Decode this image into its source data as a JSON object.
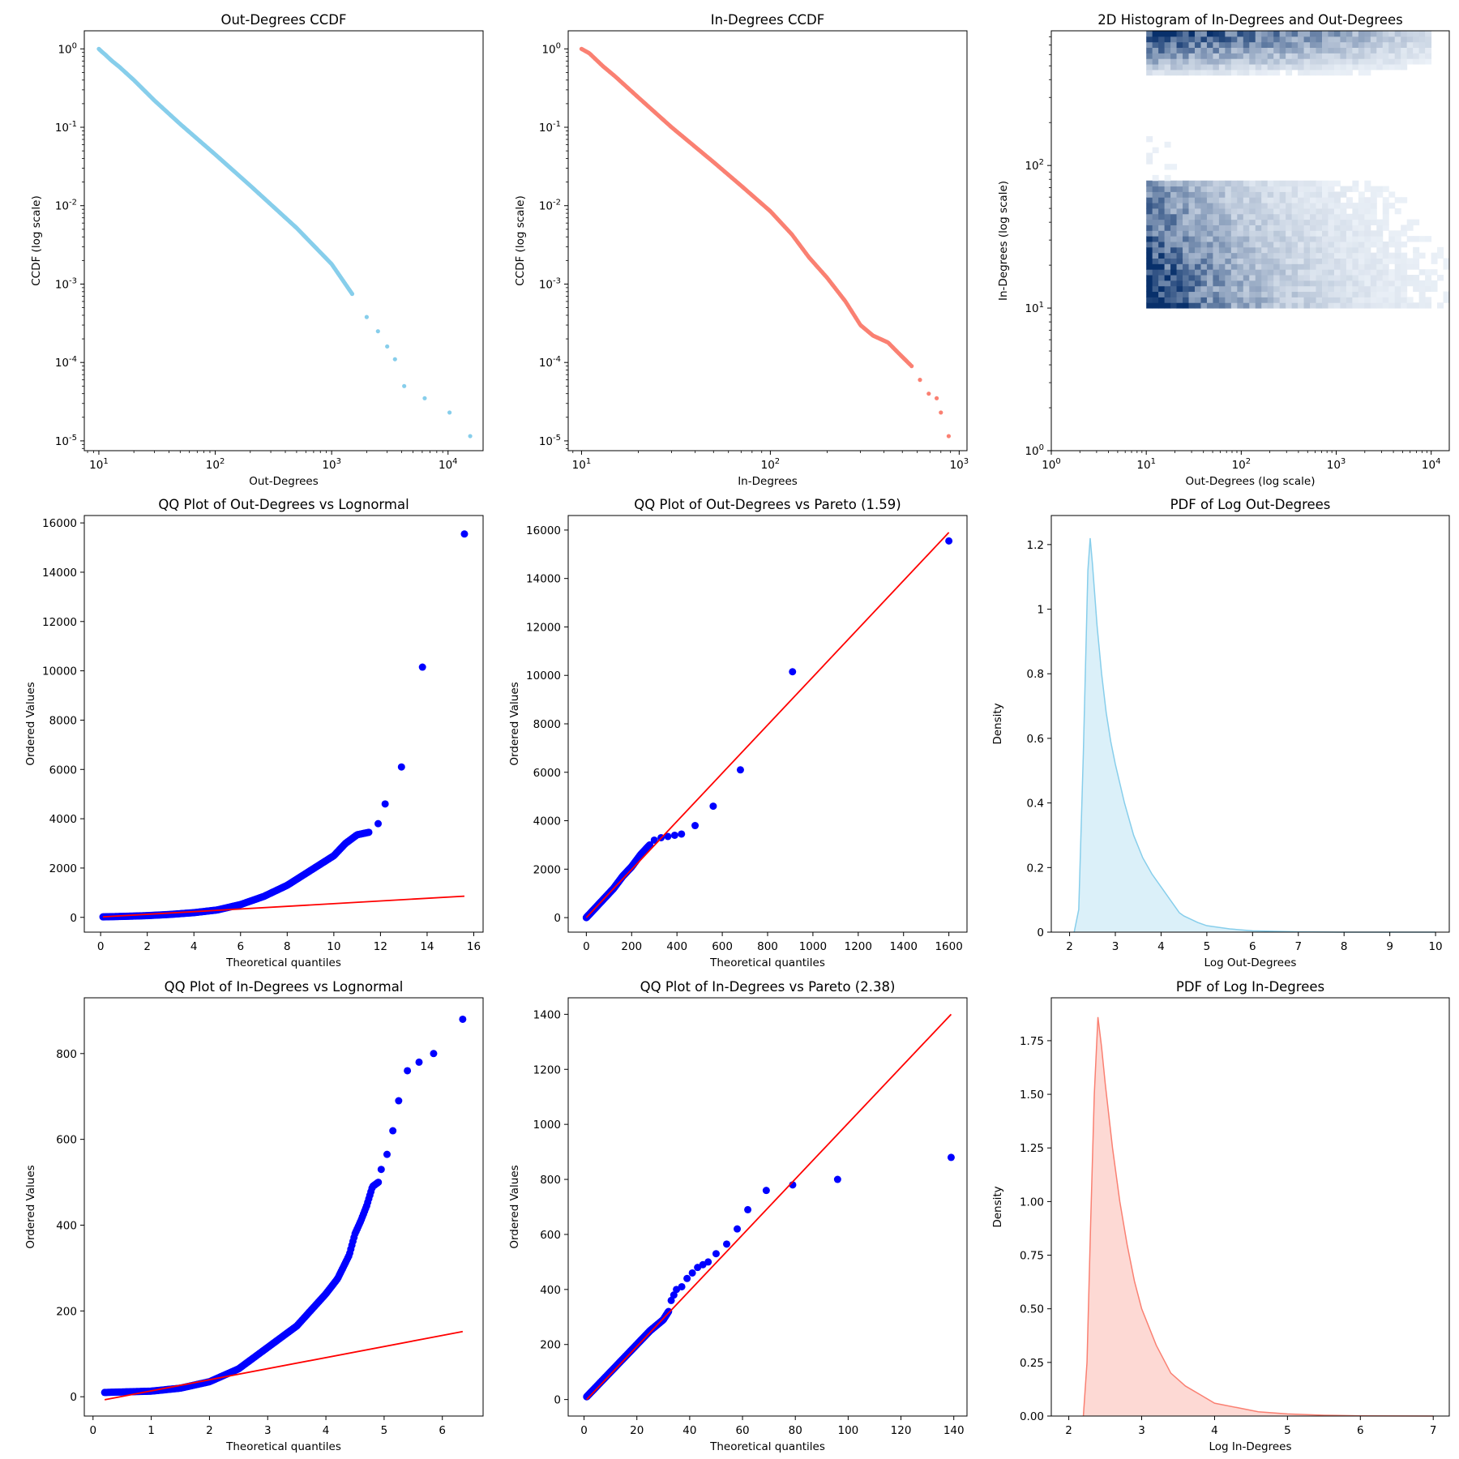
{
  "chart_data": [
    {
      "id": "out_ccdf",
      "type": "scatter",
      "title": "Out-Degrees CCDF",
      "xlabel": "Out-Degrees",
      "ylabel": "CCDF (log scale)",
      "xscale": "log",
      "yscale": "log",
      "xlim": [
        7.5,
        20000
      ],
      "ylim": [
        7.5e-06,
        1.7
      ],
      "xticks": [
        10,
        100,
        1000,
        10000
      ],
      "yticks": [
        1e-05,
        0.0001,
        0.001,
        0.01,
        0.1,
        1
      ],
      "color": "#87ceeb",
      "series": [
        {
          "x": [
            10,
            10.6,
            11.3,
            12,
            13,
            15,
            20,
            30,
            50,
            100,
            200,
            500,
            1000,
            1500,
            2000,
            2500,
            3000,
            3500,
            4200,
            6300,
            10300,
            15500
          ],
          "y": [
            1,
            0.92,
            0.85,
            0.78,
            0.7,
            0.59,
            0.4,
            0.22,
            0.11,
            0.045,
            0.018,
            0.0052,
            0.0018,
            0.00075,
            0.00038,
            0.00025,
            0.00016,
            0.00011,
            5e-05,
            3.5e-05,
            2.3e-05,
            1.15e-05
          ]
        }
      ]
    },
    {
      "id": "in_ccdf",
      "type": "scatter",
      "title": "In-Degrees CCDF",
      "xlabel": "In-Degrees",
      "ylabel": "CCDF (log scale)",
      "xscale": "log",
      "yscale": "log",
      "xlim": [
        8.5,
        1100
      ],
      "ylim": [
        7.5e-06,
        1.7
      ],
      "xticks": [
        10,
        100,
        1000
      ],
      "yticks": [
        1e-05,
        0.0001,
        0.001,
        0.01,
        0.1,
        1
      ],
      "color": "#fa8072",
      "series": [
        {
          "x": [
            10,
            11,
            12,
            13,
            15,
            20,
            30,
            50,
            70,
            100,
            130,
            160,
            200,
            250,
            300,
            350,
            420,
            480,
            560,
            620,
            690,
            760,
            800,
            880
          ],
          "y": [
            1,
            0.88,
            0.72,
            0.6,
            0.45,
            0.24,
            0.1,
            0.036,
            0.018,
            0.0085,
            0.0043,
            0.0022,
            0.0012,
            0.0006,
            0.0003,
            0.00022,
            0.00018,
            0.00013,
            9e-05,
            6e-05,
            4e-05,
            3.5e-05,
            2.3e-05,
            1.15e-05
          ]
        }
      ]
    },
    {
      "id": "hist2d",
      "type": "heatmap",
      "title": "2D Histogram of In-Degrees and Out-Degrees",
      "xlabel": "Out-Degrees (log scale)",
      "ylabel": "In-Degrees (log scale)",
      "xscale": "log",
      "yscale": "log",
      "xlim": [
        1,
        15500
      ],
      "ylim": [
        1,
        880
      ],
      "xticks": [
        1,
        10,
        100,
        1000,
        10000
      ],
      "yticks": [
        1,
        10,
        100
      ],
      "colormap": "Blues",
      "data_extent": {
        "x": [
          10,
          15500
        ],
        "y": [
          10,
          880
        ]
      }
    },
    {
      "id": "qq_out_logn",
      "type": "scatter",
      "title": "QQ Plot of Out-Degrees vs Lognormal",
      "xlabel": "Theoretical quantiles",
      "ylabel": "Ordered Values",
      "xlim": [
        -0.7,
        16.4
      ],
      "ylim": [
        -600,
        16300
      ],
      "xticks": [
        0,
        2,
        4,
        6,
        8,
        10,
        12,
        14,
        16
      ],
      "yticks": [
        0,
        2000,
        4000,
        6000,
        8000,
        10000,
        12000,
        14000,
        16000
      ],
      "point_color": "#0000ff",
      "line_color": "#ff0000",
      "curve": [
        [
          0.1,
          20
        ],
        [
          1,
          40
        ],
        [
          2,
          70
        ],
        [
          3,
          120
        ],
        [
          4,
          190
        ],
        [
          5,
          300
        ],
        [
          6,
          520
        ],
        [
          7,
          850
        ],
        [
          8,
          1300
        ],
        [
          9,
          1900
        ],
        [
          9.5,
          2200
        ],
        [
          10,
          2500
        ],
        [
          10.5,
          3000
        ],
        [
          11,
          3350
        ],
        [
          11.5,
          3450
        ]
      ],
      "points": [
        [
          11.9,
          3800
        ],
        [
          12.2,
          4600
        ],
        [
          12.9,
          6100
        ],
        [
          13.8,
          10150
        ],
        [
          15.6,
          15550
        ]
      ],
      "fit_line": [
        [
          0.1,
          20
        ],
        [
          15.6,
          860
        ]
      ]
    },
    {
      "id": "qq_out_pareto",
      "type": "scatter",
      "title": "QQ Plot of Out-Degrees vs Pareto (1.59)",
      "xlabel": "Theoretical quantiles",
      "ylabel": "Ordered Values",
      "xlim": [
        -80,
        1680
      ],
      "ylim": [
        -600,
        16600
      ],
      "xticks": [
        0,
        200,
        400,
        600,
        800,
        1000,
        1200,
        1400,
        1600
      ],
      "yticks": [
        0,
        2000,
        4000,
        6000,
        8000,
        10000,
        12000,
        14000,
        16000
      ],
      "point_color": "#0000ff",
      "line_color": "#ff0000",
      "curve": [
        [
          0,
          0
        ],
        [
          40,
          400
        ],
        [
          80,
          800
        ],
        [
          120,
          1200
        ],
        [
          160,
          1700
        ],
        [
          200,
          2100
        ],
        [
          240,
          2600
        ],
        [
          280,
          3000
        ]
      ],
      "points": [
        [
          300,
          3200
        ],
        [
          330,
          3300
        ],
        [
          360,
          3350
        ],
        [
          390,
          3400
        ],
        [
          420,
          3450
        ],
        [
          480,
          3800
        ],
        [
          560,
          4600
        ],
        [
          680,
          6100
        ],
        [
          910,
          10150
        ],
        [
          1600,
          15550
        ]
      ],
      "fit_line": [
        [
          0,
          0
        ],
        [
          1600,
          15900
        ]
      ]
    },
    {
      "id": "pdf_out",
      "type": "area",
      "title": "PDF of Log Out-Degrees",
      "xlabel": "Log Out-Degrees",
      "ylabel": "Density",
      "xlim": [
        1.6,
        10.3
      ],
      "ylim": [
        0,
        1.29
      ],
      "xticks": [
        2,
        3,
        4,
        5,
        6,
        7,
        8,
        9,
        10
      ],
      "yticks": [
        0,
        0.2,
        0.4,
        0.6,
        0.8,
        1.0,
        1.2
      ],
      "color": "#87ceeb",
      "x": [
        2.1,
        2.2,
        2.3,
        2.4,
        2.45,
        2.5,
        2.6,
        2.7,
        2.8,
        2.9,
        3.0,
        3.2,
        3.4,
        3.6,
        3.8,
        4.0,
        4.2,
        4.4,
        4.5,
        4.8,
        5.0,
        5.5,
        6.0,
        7.0,
        8.0,
        10.0
      ],
      "values": [
        0.0,
        0.07,
        0.55,
        1.12,
        1.22,
        1.14,
        0.95,
        0.8,
        0.68,
        0.59,
        0.52,
        0.4,
        0.3,
        0.23,
        0.18,
        0.14,
        0.1,
        0.06,
        0.05,
        0.03,
        0.02,
        0.01,
        0.004,
        0.001,
        0.0,
        0.0
      ]
    },
    {
      "id": "qq_in_logn",
      "type": "scatter",
      "title": "QQ Plot of In-Degrees vs Lognormal",
      "xlabel": "Theoretical quantiles",
      "ylabel": "Ordered Values",
      "xlim": [
        -0.15,
        6.7
      ],
      "ylim": [
        -45,
        930
      ],
      "xticks": [
        0,
        1,
        2,
        3,
        4,
        5,
        6
      ],
      "yticks": [
        0,
        200,
        400,
        600,
        800
      ],
      "point_color": "#0000ff",
      "line_color": "#ff0000",
      "curve": [
        [
          0.2,
          10
        ],
        [
          1,
          13
        ],
        [
          1.5,
          20
        ],
        [
          2,
          35
        ],
        [
          2.5,
          65
        ],
        [
          3,
          115
        ],
        [
          3.5,
          165
        ],
        [
          3.8,
          210
        ],
        [
          4,
          240
        ],
        [
          4.2,
          275
        ],
        [
          4.4,
          330
        ],
        [
          4.5,
          380
        ],
        [
          4.6,
          410
        ],
        [
          4.7,
          445
        ],
        [
          4.8,
          490
        ],
        [
          4.9,
          500
        ]
      ],
      "points": [
        [
          4.95,
          530
        ],
        [
          5.05,
          565
        ],
        [
          5.15,
          620
        ],
        [
          5.25,
          690
        ],
        [
          5.4,
          760
        ],
        [
          5.6,
          780
        ],
        [
          5.85,
          800
        ],
        [
          6.35,
          880
        ]
      ],
      "fit_line": [
        [
          0.2,
          -7
        ],
        [
          6.35,
          152
        ]
      ]
    },
    {
      "id": "qq_in_pareto",
      "type": "scatter",
      "title": "QQ Plot of In-Degrees vs Pareto (2.38)",
      "xlabel": "Theoretical quantiles",
      "ylabel": "Ordered Values",
      "xlim": [
        -6,
        145
      ],
      "ylim": [
        -60,
        1460
      ],
      "xticks": [
        0,
        20,
        40,
        60,
        80,
        100,
        120,
        140
      ],
      "yticks": [
        0,
        200,
        400,
        600,
        800,
        1000,
        1200,
        1400
      ],
      "point_color": "#0000ff",
      "line_color": "#ff0000",
      "curve": [
        [
          1,
          10
        ],
        [
          5,
          50
        ],
        [
          10,
          100
        ],
        [
          15,
          150
        ],
        [
          20,
          200
        ],
        [
          25,
          250
        ],
        [
          30,
          290
        ],
        [
          32,
          320
        ]
      ],
      "points": [
        [
          33,
          360
        ],
        [
          34,
          380
        ],
        [
          35,
          400
        ],
        [
          37,
          410
        ],
        [
          39,
          440
        ],
        [
          41,
          460
        ],
        [
          43,
          480
        ],
        [
          45,
          490
        ],
        [
          47,
          500
        ],
        [
          50,
          530
        ],
        [
          54,
          565
        ],
        [
          58,
          620
        ],
        [
          62,
          690
        ],
        [
          69,
          760
        ],
        [
          79,
          780
        ],
        [
          96,
          800
        ],
        [
          139,
          880
        ]
      ],
      "fit_line": [
        [
          1,
          0
        ],
        [
          139,
          1400
        ]
      ]
    },
    {
      "id": "pdf_in",
      "type": "area",
      "title": "PDF of Log In-Degrees",
      "xlabel": "Log In-Degrees",
      "ylabel": "Density",
      "xlim": [
        1.76,
        7.22
      ],
      "ylim": [
        0,
        1.95
      ],
      "xticks": [
        2,
        3,
        4,
        5,
        6,
        7
      ],
      "yticks": [
        0,
        0.25,
        0.5,
        0.75,
        1.0,
        1.25,
        1.5,
        1.75
      ],
      "ytick_labels": [
        "0.00",
        "0.25",
        "0.50",
        "0.75",
        "1.00",
        "1.25",
        "1.50",
        "1.75"
      ],
      "color": "#fa8072",
      "x": [
        2.2,
        2.25,
        2.3,
        2.35,
        2.4,
        2.45,
        2.5,
        2.6,
        2.7,
        2.8,
        2.9,
        3.0,
        3.2,
        3.4,
        3.6,
        3.8,
        4.0,
        4.3,
        4.6,
        5.0,
        5.5,
        6.0,
        7.0
      ],
      "values": [
        0.0,
        0.25,
        0.9,
        1.5,
        1.86,
        1.72,
        1.55,
        1.25,
        1.0,
        0.8,
        0.63,
        0.5,
        0.33,
        0.2,
        0.14,
        0.1,
        0.06,
        0.04,
        0.02,
        0.01,
        0.004,
        0.001,
        0.0
      ]
    }
  ]
}
